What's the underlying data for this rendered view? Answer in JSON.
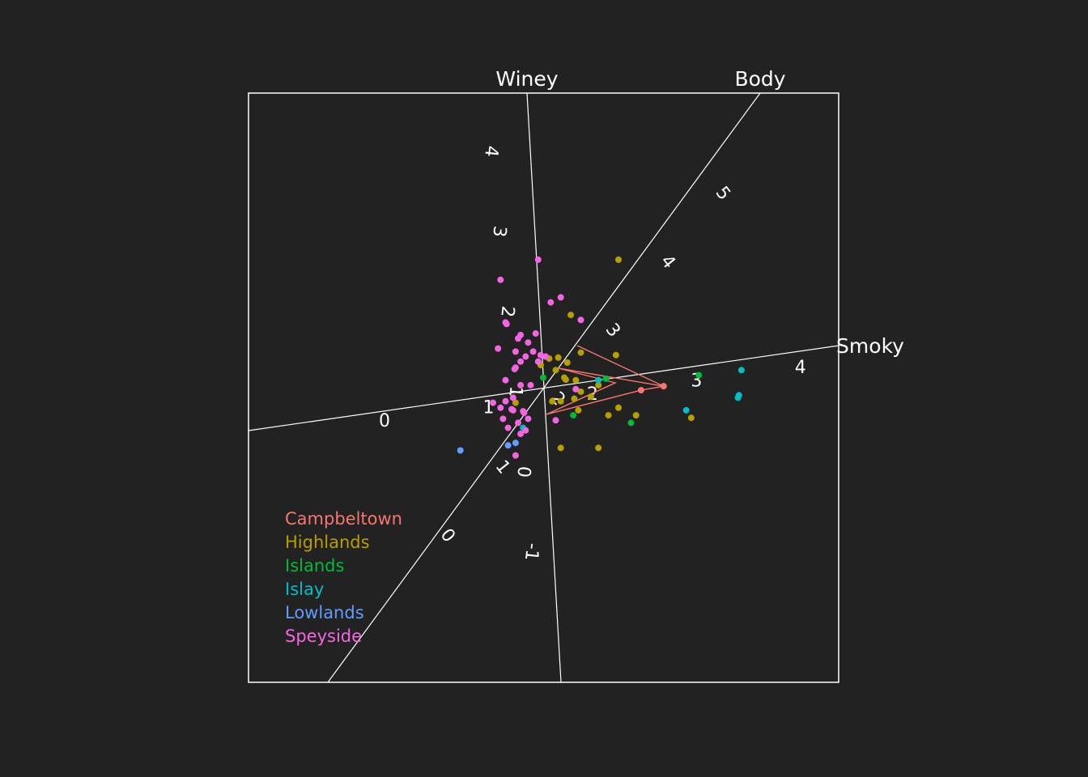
{
  "chart_data": {
    "type": "scatter",
    "variant": "biplot (tour projection) with labeled axes",
    "title": "",
    "background": "#222222",
    "frame_color": "#ffffff",
    "axes": [
      {
        "name": "Winey",
        "ticks": [
          "-1",
          "0",
          "1",
          "2",
          "3",
          "4"
        ]
      },
      {
        "name": "Body",
        "ticks": [
          "0",
          "1",
          "2",
          "3",
          "4",
          "5"
        ]
      },
      {
        "name": "Smoky",
        "ticks": [
          "0",
          "1",
          "2",
          "3",
          "4"
        ]
      }
    ],
    "legend": {
      "position": "bottom-left",
      "entries": [
        {
          "name": "Campbeltown",
          "color": "#f8766d"
        },
        {
          "name": "Highlands",
          "color": "#b79f00"
        },
        {
          "name": "Islands",
          "color": "#00ba38"
        },
        {
          "name": "Islay",
          "color": "#00bfc4"
        },
        {
          "name": "Lowlands",
          "color": "#619cff"
        },
        {
          "name": "Speyside",
          "color": "#f564e3"
        }
      ]
    },
    "hull_group": "Campbeltown",
    "points": [
      {
        "group": "Campbeltown",
        "x": 2.4,
        "y": 0.03
      },
      {
        "group": "Campbeltown",
        "x": 1.95,
        "y": -0.05
      },
      {
        "group": "Highlands",
        "x": 1.5,
        "y": 2.55
      },
      {
        "group": "Highlands",
        "x": 0.55,
        "y": 1.45
      },
      {
        "group": "Highlands",
        "x": 1.45,
        "y": 0.65
      },
      {
        "group": "Highlands",
        "x": 0.75,
        "y": 0.7
      },
      {
        "group": "Highlands",
        "x": 0.3,
        "y": 0.6
      },
      {
        "group": "Highlands",
        "x": 0.12,
        "y": 0.58
      },
      {
        "group": "Highlands",
        "x": 0.48,
        "y": 0.5
      },
      {
        "group": "Highlands",
        "x": -0.05,
        "y": 0.45
      },
      {
        "group": "Highlands",
        "x": 0.25,
        "y": 0.35
      },
      {
        "group": "Highlands",
        "x": 0.42,
        "y": 0.2
      },
      {
        "group": "Highlands",
        "x": 0.45,
        "y": 0.16
      },
      {
        "group": "Highlands",
        "x": 0.65,
        "y": 0.15
      },
      {
        "group": "Highlands",
        "x": 1.1,
        "y": 0.05
      },
      {
        "group": "Highlands",
        "x": 0.75,
        "y": -0.08
      },
      {
        "group": "Highlands",
        "x": 0.95,
        "y": -0.18
      },
      {
        "group": "Highlands",
        "x": 0.62,
        "y": -0.22
      },
      {
        "group": "Highlands",
        "x": 0.35,
        "y": -0.27
      },
      {
        "group": "Highlands",
        "x": 0.18,
        "y": -0.27
      },
      {
        "group": "Highlands",
        "x": -0.55,
        "y": -0.3
      },
      {
        "group": "Highlands",
        "x": 0.7,
        "y": -0.45
      },
      {
        "group": "Highlands",
        "x": 1.5,
        "y": -0.4
      },
      {
        "group": "Highlands",
        "x": 1.3,
        "y": -0.55
      },
      {
        "group": "Highlands",
        "x": 1.85,
        "y": -0.55
      },
      {
        "group": "Highlands",
        "x": 0.35,
        "y": -1.2
      },
      {
        "group": "Highlands",
        "x": 1.1,
        "y": -1.2
      },
      {
        "group": "Highlands",
        "x": 2.95,
        "y": -0.6
      },
      {
        "group": "Islands",
        "x": 0.0,
        "y": 0.2
      },
      {
        "group": "Islands",
        "x": 1.25,
        "y": 0.18
      },
      {
        "group": "Islands",
        "x": 0.6,
        "y": -0.55
      },
      {
        "group": "Islands",
        "x": 1.75,
        "y": -0.7
      },
      {
        "group": "Islands",
        "x": 3.1,
        "y": 0.25
      },
      {
        "group": "Islay",
        "x": 1.1,
        "y": 0.15
      },
      {
        "group": "Islay",
        "x": 3.95,
        "y": 0.35
      },
      {
        "group": "Islay",
        "x": 3.9,
        "y": -0.15
      },
      {
        "group": "Islay",
        "x": 3.88,
        "y": -0.2
      },
      {
        "group": "Islay",
        "x": 2.85,
        "y": -0.45
      },
      {
        "group": "Islay",
        "x": -0.4,
        "y": -0.8
      },
      {
        "group": "Lowlands",
        "x": -1.65,
        "y": -1.25
      },
      {
        "group": "Lowlands",
        "x": -0.7,
        "y": -1.15
      },
      {
        "group": "Lowlands",
        "x": -0.55,
        "y": -1.1
      },
      {
        "group": "Speyside",
        "x": -0.1,
        "y": 2.55
      },
      {
        "group": "Speyside",
        "x": -0.85,
        "y": 2.15
      },
      {
        "group": "Speyside",
        "x": 0.35,
        "y": 1.8
      },
      {
        "group": "Speyside",
        "x": 0.15,
        "y": 1.7
      },
      {
        "group": "Speyside",
        "x": 0.75,
        "y": 1.35
      },
      {
        "group": "Speyside",
        "x": -0.75,
        "y": 1.3
      },
      {
        "group": "Speyside",
        "x": -0.73,
        "y": 1.27
      },
      {
        "group": "Speyside",
        "x": -0.45,
        "y": 1.05
      },
      {
        "group": "Speyside",
        "x": -0.15,
        "y": 1.08
      },
      {
        "group": "Speyside",
        "x": -0.5,
        "y": 0.98
      },
      {
        "group": "Speyside",
        "x": -0.3,
        "y": 0.9
      },
      {
        "group": "Speyside",
        "x": -0.05,
        "y": 0.65
      },
      {
        "group": "Speyside",
        "x": -0.9,
        "y": 0.78
      },
      {
        "group": "Speyside",
        "x": -0.55,
        "y": 0.72
      },
      {
        "group": "Speyside",
        "x": -0.2,
        "y": 0.72
      },
      {
        "group": "Speyside",
        "x": 0.05,
        "y": 0.62
      },
      {
        "group": "Speyside",
        "x": -0.35,
        "y": 0.62
      },
      {
        "group": "Speyside",
        "x": -0.45,
        "y": 0.52
      },
      {
        "group": "Speyside",
        "x": -0.1,
        "y": 0.52
      },
      {
        "group": "Speyside",
        "x": -0.55,
        "y": 0.4
      },
      {
        "group": "Speyside",
        "x": -0.57,
        "y": 0.37
      },
      {
        "group": "Speyside",
        "x": -0.75,
        "y": 0.15
      },
      {
        "group": "Speyside",
        "x": -0.45,
        "y": 0.05
      },
      {
        "group": "Speyside",
        "x": -0.25,
        "y": 0.05
      },
      {
        "group": "Speyside",
        "x": 0.65,
        "y": -0.03
      },
      {
        "group": "Speyside",
        "x": -0.6,
        "y": -0.2
      },
      {
        "group": "Speyside",
        "x": -0.75,
        "y": -0.27
      },
      {
        "group": "Speyside",
        "x": -1.0,
        "y": -0.3
      },
      {
        "group": "Speyside",
        "x": -0.85,
        "y": -0.4
      },
      {
        "group": "Speyside",
        "x": -0.63,
        "y": -0.43
      },
      {
        "group": "Speyside",
        "x": -0.6,
        "y": -0.45
      },
      {
        "group": "Speyside",
        "x": -0.4,
        "y": -0.47
      },
      {
        "group": "Speyside",
        "x": -0.38,
        "y": -0.5
      },
      {
        "group": "Speyside",
        "x": -0.8,
        "y": -0.62
      },
      {
        "group": "Speyside",
        "x": -0.3,
        "y": -0.62
      },
      {
        "group": "Speyside",
        "x": -0.5,
        "y": -0.7
      },
      {
        "group": "Speyside",
        "x": -0.7,
        "y": -0.8
      },
      {
        "group": "Speyside",
        "x": -0.35,
        "y": -0.85
      },
      {
        "group": "Speyside",
        "x": -0.45,
        "y": -0.92
      },
      {
        "group": "Speyside",
        "x": 0.25,
        "y": -0.65
      },
      {
        "group": "Speyside",
        "x": -0.55,
        "y": -1.35
      }
    ]
  }
}
